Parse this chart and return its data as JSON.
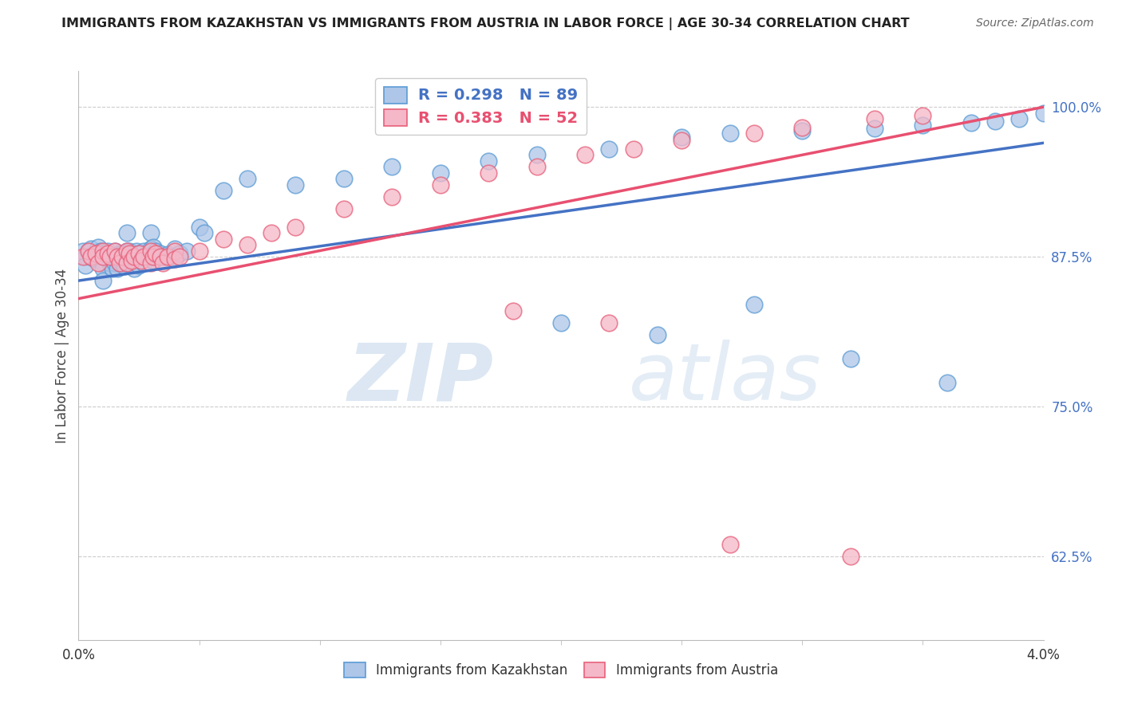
{
  "title": "IMMIGRANTS FROM KAZAKHSTAN VS IMMIGRANTS FROM AUSTRIA IN LABOR FORCE | AGE 30-34 CORRELATION CHART",
  "source": "Source: ZipAtlas.com",
  "ylabel": "In Labor Force | Age 30-34",
  "ytick_labels": [
    "62.5%",
    "75.0%",
    "87.5%",
    "100.0%"
  ],
  "ytick_values": [
    0.625,
    0.75,
    0.875,
    1.0
  ],
  "xlim": [
    0.0,
    0.04
  ],
  "ylim": [
    0.555,
    1.03
  ],
  "legend1_label": "R = 0.298   N = 89",
  "legend2_label": "R = 0.383   N = 52",
  "color_kaz_fill": "#aec6e8",
  "color_kaz_edge": "#5b9bd5",
  "color_aut_fill": "#f4b8c8",
  "color_aut_edge": "#e8607a",
  "color_line_kaz": "#4472c4",
  "color_line_aut": "#e85070",
  "background_color": "#ffffff",
  "grid_color": "#cccccc",
  "watermark_zip": "ZIP",
  "watermark_atlas": "atlas",
  "kaz_x": [
    0.0002,
    0.0003,
    0.0004,
    0.0003,
    0.0005,
    0.0005,
    0.0006,
    0.0007,
    0.0008,
    0.0008,
    0.0009,
    0.0009,
    0.001,
    0.001,
    0.001,
    0.001,
    0.001,
    0.0012,
    0.0012,
    0.0013,
    0.0013,
    0.0014,
    0.0014,
    0.0015,
    0.0015,
    0.0016,
    0.0016,
    0.0017,
    0.0017,
    0.0018,
    0.0018,
    0.0019,
    0.002,
    0.002,
    0.002,
    0.0021,
    0.0021,
    0.0022,
    0.0022,
    0.0023,
    0.0023,
    0.0024,
    0.0024,
    0.0025,
    0.0025,
    0.0026,
    0.0027,
    0.0027,
    0.003,
    0.003,
    0.003,
    0.0031,
    0.0031,
    0.0032,
    0.0033,
    0.0034,
    0.0035,
    0.0036,
    0.0037,
    0.0038,
    0.004,
    0.004,
    0.0042,
    0.0045,
    0.005,
    0.0052,
    0.006,
    0.007,
    0.009,
    0.011,
    0.013,
    0.015,
    0.017,
    0.019,
    0.022,
    0.025,
    0.027,
    0.03,
    0.033,
    0.035,
    0.037,
    0.038,
    0.039,
    0.04,
    0.028,
    0.02,
    0.024,
    0.032,
    0.036
  ],
  "kaz_y": [
    0.88,
    0.875,
    0.88,
    0.868,
    0.882,
    0.875,
    0.874,
    0.876,
    0.883,
    0.877,
    0.88,
    0.875,
    0.878,
    0.875,
    0.87,
    0.865,
    0.855,
    0.88,
    0.875,
    0.876,
    0.87,
    0.875,
    0.865,
    0.88,
    0.87,
    0.873,
    0.865,
    0.878,
    0.87,
    0.878,
    0.87,
    0.867,
    0.895,
    0.88,
    0.87,
    0.88,
    0.87,
    0.878,
    0.87,
    0.875,
    0.865,
    0.88,
    0.87,
    0.878,
    0.868,
    0.872,
    0.88,
    0.87,
    0.895,
    0.882,
    0.875,
    0.883,
    0.872,
    0.88,
    0.875,
    0.878,
    0.875,
    0.875,
    0.877,
    0.875,
    0.882,
    0.875,
    0.878,
    0.88,
    0.9,
    0.895,
    0.93,
    0.94,
    0.935,
    0.94,
    0.95,
    0.945,
    0.955,
    0.96,
    0.965,
    0.975,
    0.978,
    0.98,
    0.982,
    0.985,
    0.987,
    0.988,
    0.99,
    0.995,
    0.835,
    0.82,
    0.81,
    0.79,
    0.77
  ],
  "aut_x": [
    0.0002,
    0.0004,
    0.0005,
    0.0007,
    0.0008,
    0.001,
    0.001,
    0.0012,
    0.0013,
    0.0015,
    0.0016,
    0.0017,
    0.0018,
    0.002,
    0.002,
    0.0021,
    0.0022,
    0.0023,
    0.0025,
    0.0026,
    0.0027,
    0.003,
    0.003,
    0.0031,
    0.0032,
    0.0034,
    0.0035,
    0.0037,
    0.004,
    0.004,
    0.0042,
    0.005,
    0.006,
    0.007,
    0.008,
    0.009,
    0.011,
    0.013,
    0.015,
    0.017,
    0.019,
    0.021,
    0.023,
    0.025,
    0.028,
    0.03,
    0.033,
    0.035,
    0.018,
    0.022,
    0.027,
    0.032
  ],
  "aut_y": [
    0.875,
    0.88,
    0.875,
    0.878,
    0.87,
    0.88,
    0.875,
    0.878,
    0.875,
    0.88,
    0.875,
    0.87,
    0.875,
    0.88,
    0.87,
    0.878,
    0.872,
    0.875,
    0.878,
    0.872,
    0.875,
    0.88,
    0.87,
    0.875,
    0.878,
    0.875,
    0.87,
    0.875,
    0.88,
    0.873,
    0.875,
    0.88,
    0.89,
    0.885,
    0.895,
    0.9,
    0.915,
    0.925,
    0.935,
    0.945,
    0.95,
    0.96,
    0.965,
    0.972,
    0.978,
    0.983,
    0.99,
    0.993,
    0.83,
    0.82,
    0.635,
    0.625
  ],
  "kaz_line_x": [
    0.0,
    0.04
  ],
  "kaz_line_y": [
    0.855,
    0.97
  ],
  "aut_line_x": [
    0.0,
    0.04
  ],
  "aut_line_y": [
    0.84,
    1.0
  ]
}
